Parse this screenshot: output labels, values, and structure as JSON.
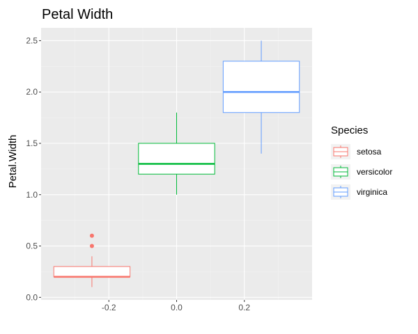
{
  "chart_data": {
    "type": "box",
    "title": "Petal Width",
    "xlabel": "",
    "ylabel": "Petal.Width",
    "xlim": [
      -0.4,
      0.4
    ],
    "ylim": [
      -0.025,
      2.625
    ],
    "x_ticks": [
      -0.2,
      0.0,
      0.2
    ],
    "x_tick_labels": [
      "-0.2",
      "0.0",
      "0.2"
    ],
    "y_ticks": [
      0.0,
      0.5,
      1.0,
      1.5,
      2.0,
      2.5
    ],
    "y_tick_labels": [
      "0.0",
      "0.5",
      "1.0",
      "1.5",
      "2.0",
      "2.5"
    ],
    "grid": true,
    "legend": {
      "title": "Species",
      "position": "right"
    },
    "series": [
      {
        "name": "setosa",
        "color": "#F8766D",
        "x_center": -0.25,
        "box_width": 0.225,
        "whisker_low": 0.1,
        "q1": 0.2,
        "median": 0.2,
        "q3": 0.3,
        "whisker_high": 0.4,
        "outliers": [
          0.5,
          0.6
        ]
      },
      {
        "name": "versicolor",
        "color": "#00BA38",
        "x_center": 0.0,
        "box_width": 0.225,
        "whisker_low": 1.0,
        "q1": 1.2,
        "median": 1.3,
        "q3": 1.5,
        "whisker_high": 1.8,
        "outliers": []
      },
      {
        "name": "virginica",
        "color": "#619CFF",
        "x_center": 0.25,
        "box_width": 0.225,
        "whisker_low": 1.4,
        "q1": 1.8,
        "median": 2.0,
        "q3": 2.3,
        "whisker_high": 2.5,
        "outliers": []
      }
    ]
  }
}
